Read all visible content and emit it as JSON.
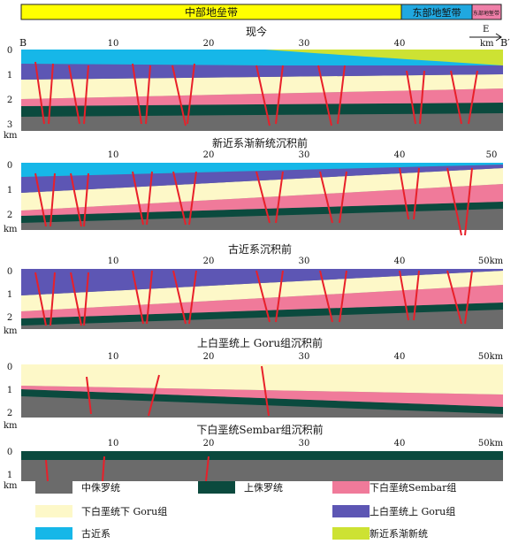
{
  "zones": {
    "central": "中部地垒带",
    "eastern": "东部地堑带",
    "east_graben": "东部地堑带"
  },
  "labels": {
    "point_b": "B",
    "point_b_prime": "B′",
    "east": "E",
    "km_unit": "km"
  },
  "sections": [
    {
      "title": "现今",
      "ticks": [
        "10",
        "20",
        "30",
        "40"
      ],
      "depth_ticks": [
        "0",
        "1",
        "2",
        "3"
      ],
      "x_end_label": "km"
    },
    {
      "title": "新近系渐新统沉积前",
      "ticks": [
        "10",
        "20",
        "30",
        "40",
        "50"
      ],
      "depth_ticks": [
        "0",
        "1",
        "2"
      ],
      "x_end_label": ""
    },
    {
      "title": "古近系沉积前",
      "ticks": [
        "10",
        "20",
        "30",
        "40",
        "50km"
      ],
      "depth_ticks": [
        "0",
        "1",
        "2"
      ],
      "x_end_label": ""
    },
    {
      "title": "上白垩统上 Goru组沉积前",
      "ticks": [
        "10",
        "20",
        "30",
        "40",
        "50km"
      ],
      "depth_ticks": [
        "0",
        "1",
        "2"
      ],
      "x_end_label": ""
    },
    {
      "title": "下白垩统Sembar组沉积前",
      "ticks": [
        "10",
        "20",
        "30",
        "40",
        "50km"
      ],
      "depth_ticks": [
        "0",
        "1"
      ],
      "x_end_label": ""
    }
  ],
  "legend": [
    {
      "label": "中侏罗统",
      "color": "#6b6b6b"
    },
    {
      "label": "上侏罗统",
      "color": "#0b4a3e"
    },
    {
      "label": "下白垩统Sembar组",
      "color": "#f07a9a"
    },
    {
      "label": "下白垩统下 Goru组",
      "color": "#fdf8c8"
    },
    {
      "label": "上白垩统上 Goru组",
      "color": "#5d56b4"
    },
    {
      "label": "古近系",
      "color": "#16b7e8"
    },
    {
      "label": "新近系渐新统",
      "color": "#cde233"
    }
  ],
  "colors": {
    "zone_central": "#ffff00",
    "zone_eastern": "#20a8e0",
    "zone_east_graben": "#ef7fa8",
    "fault": "#e8202a"
  }
}
